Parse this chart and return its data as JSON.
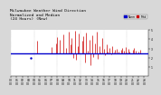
{
  "background_color": "#d8d8d8",
  "plot_bg_color": "#ffffff",
  "bar_color": "#cc0000",
  "median_color": "#0000cc",
  "median_value": 2.5,
  "ylim": [
    0,
    5
  ],
  "xlim": [
    0,
    95
  ],
  "n_points": 96,
  "legend_color1": "#0000cc",
  "legend_color2": "#cc0000",
  "title_fontsize": 3.2,
  "tick_fontsize": 2.2,
  "ytick_values": [
    1,
    2,
    3,
    4,
    5
  ],
  "grid_color": "#999999",
  "bar_data": [
    [
      0,
      0
    ],
    [
      1,
      0
    ],
    [
      2,
      0
    ],
    [
      3,
      0
    ],
    [
      4,
      0
    ],
    [
      5,
      0
    ],
    [
      6,
      0
    ],
    [
      7,
      0
    ],
    [
      8,
      0
    ],
    [
      9,
      0
    ],
    [
      10,
      0
    ],
    [
      11,
      0
    ],
    [
      12,
      0
    ],
    [
      13,
      0
    ],
    [
      14,
      0
    ],
    [
      15,
      0
    ],
    [
      16,
      0
    ],
    [
      17,
      0
    ],
    [
      18,
      3.8
    ],
    [
      19,
      0
    ],
    [
      20,
      0
    ],
    [
      21,
      0
    ],
    [
      22,
      0
    ],
    [
      23,
      0
    ],
    [
      24,
      0
    ],
    [
      25,
      0
    ],
    [
      26,
      0
    ],
    [
      27,
      0
    ],
    [
      28,
      3.2
    ],
    [
      29,
      0
    ],
    [
      30,
      0
    ],
    [
      31,
      3.6
    ],
    [
      32,
      4.2
    ],
    [
      33,
      0
    ],
    [
      34,
      3.9
    ],
    [
      35,
      0
    ],
    [
      36,
      4.5
    ],
    [
      37,
      0
    ],
    [
      38,
      3.1
    ],
    [
      39,
      0
    ],
    [
      40,
      4.8
    ],
    [
      41,
      3.5
    ],
    [
      42,
      4.1
    ],
    [
      43,
      2.0
    ],
    [
      44,
      4.9
    ],
    [
      45,
      1.8
    ],
    [
      46,
      3.3
    ],
    [
      47,
      4.6
    ],
    [
      48,
      2.5
    ],
    [
      49,
      3.8
    ],
    [
      50,
      4.3
    ],
    [
      51,
      1.5
    ],
    [
      52,
      4.7
    ],
    [
      53,
      2.8
    ],
    [
      54,
      3.9
    ],
    [
      55,
      1.2
    ],
    [
      56,
      4.4
    ],
    [
      57,
      2.1
    ],
    [
      58,
      3.6
    ],
    [
      59,
      4.8
    ],
    [
      60,
      1.9
    ],
    [
      61,
      3.3
    ],
    [
      62,
      2.6
    ],
    [
      63,
      4.1
    ],
    [
      64,
      3.0
    ],
    [
      65,
      2.3
    ],
    [
      66,
      3.5
    ],
    [
      67,
      2.7
    ],
    [
      68,
      3.1
    ],
    [
      69,
      2.4
    ],
    [
      70,
      3.3
    ],
    [
      71,
      2.6
    ],
    [
      72,
      2.9
    ],
    [
      73,
      3.0
    ],
    [
      74,
      2.7
    ],
    [
      75,
      0
    ],
    [
      76,
      2.9
    ],
    [
      77,
      3.1
    ],
    [
      78,
      2.8
    ],
    [
      79,
      3.2
    ],
    [
      80,
      2.6
    ],
    [
      81,
      3.0
    ],
    [
      82,
      2.7
    ],
    [
      83,
      0
    ],
    [
      84,
      2.9
    ],
    [
      85,
      3.1
    ],
    [
      86,
      2.8
    ],
    [
      87,
      0
    ],
    [
      88,
      2.7
    ],
    [
      89,
      2.9
    ],
    [
      90,
      0
    ],
    [
      91,
      0
    ],
    [
      92,
      0
    ],
    [
      93,
      0
    ],
    [
      94,
      0
    ],
    [
      95,
      0
    ]
  ],
  "scatter_dot_x": 14,
  "scatter_dot_y": 2.0,
  "scatter_dot_color": "#0000cc"
}
